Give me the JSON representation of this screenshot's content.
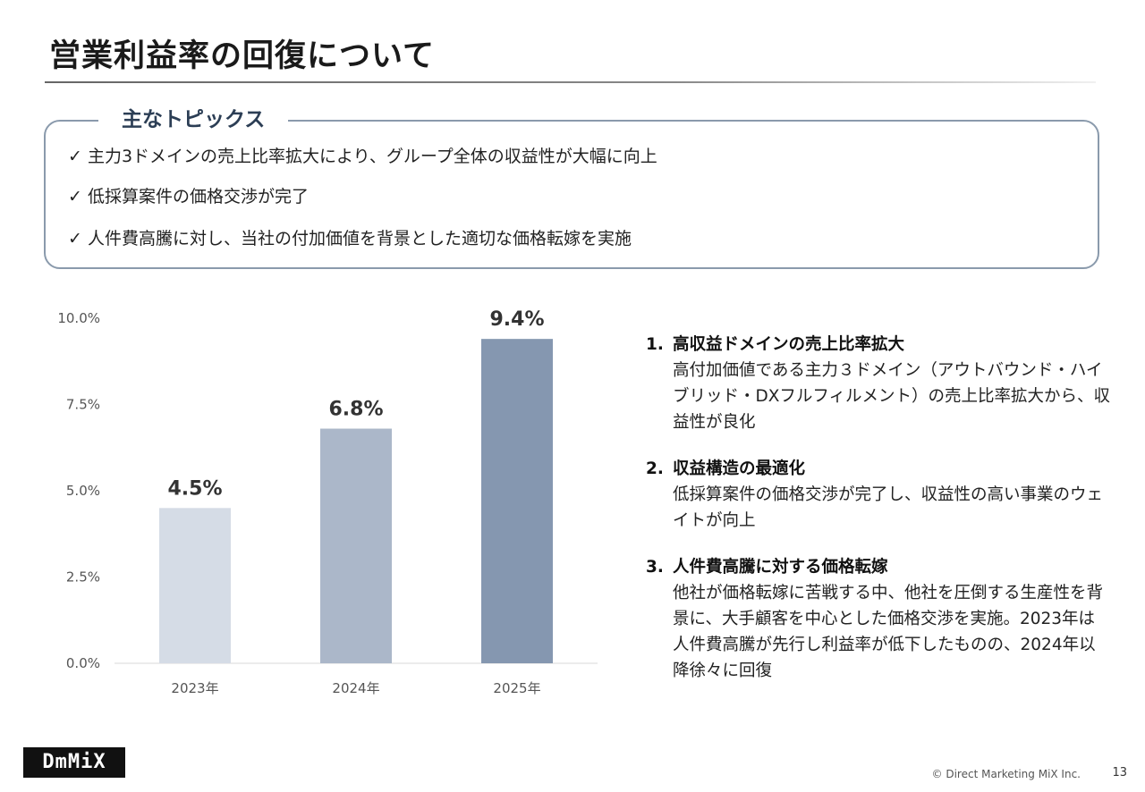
{
  "title": "営業利益率の回復について",
  "topics": {
    "heading": "主なトピックス",
    "items": [
      "✓ 主力3ドメインの売上比率拡大により、グループ全体の収益性が大幅に向上",
      "✓ 低採算案件の価格交渉が完了",
      "✓ 人件費高騰に対し、当社の付加価値を背景とした適切な価格転嫁を実施"
    ]
  },
  "chart_data": {
    "type": "bar",
    "categories": [
      "2023年",
      "2024年",
      "2025年"
    ],
    "values": [
      4.5,
      6.8,
      9.4
    ],
    "data_labels": [
      "4.5%",
      "6.8%",
      "9.4%"
    ],
    "colors": [
      "#d5dce6",
      "#abb7c9",
      "#8597b0"
    ],
    "ylim": [
      0,
      10
    ],
    "yticks": [
      "0.0%",
      "2.5%",
      "5.0%",
      "7.5%",
      "10.0%"
    ],
    "title": "",
    "xlabel": "",
    "ylabel": ""
  },
  "points": [
    {
      "num": "1.",
      "title": "高収益ドメインの売上比率拡大",
      "body": "高付加価値である主力３ドメイン（アウトバウンド・ハイブリッド・DXフルフィルメント）の売上比率拡大から、収益性が良化"
    },
    {
      "num": "2.",
      "title": "収益構造の最適化",
      "body": "低採算案件の価格交渉が完了し、収益性の高い事業のウェイトが向上"
    },
    {
      "num": "3.",
      "title": "人件費高騰に対する価格転嫁",
      "body": "他社が価格転嫁に苦戦する中、他社を圧倒する生産性を背景に、大手顧客を中心とした価格交渉を実施。2023年は人件費高騰が先行し利益率が低下したものの、2024年以降徐々に回復"
    }
  ],
  "logo": "DmMiX",
  "footer": "© Direct Marketing MiX Inc.",
  "page_number": "13"
}
